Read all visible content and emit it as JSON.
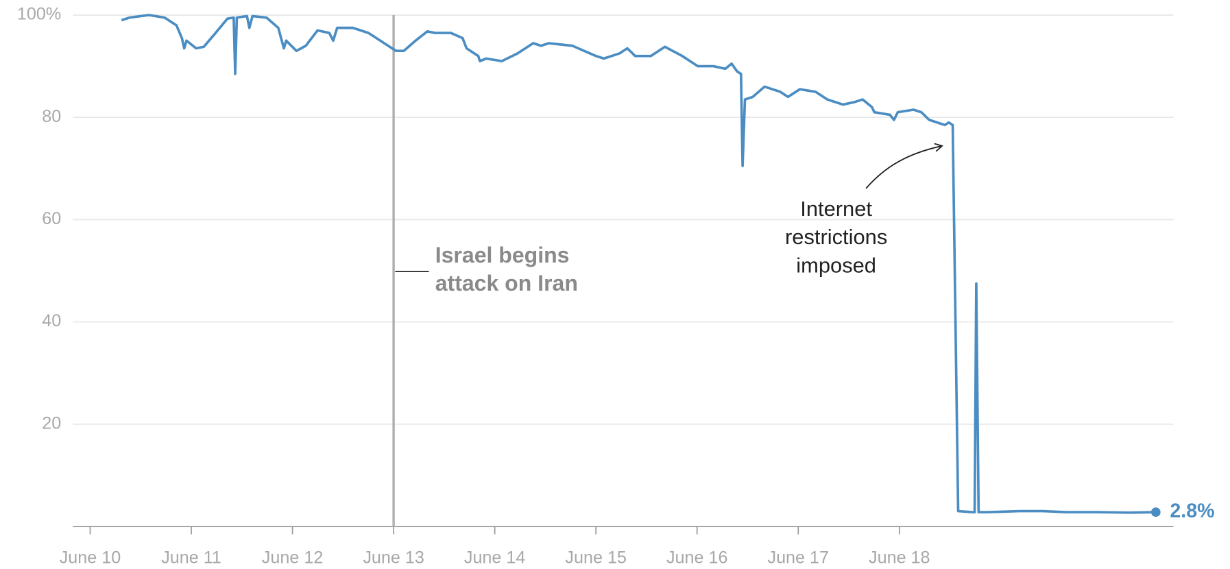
{
  "chart_data": {
    "type": "line",
    "x": [
      10.31,
      10.388,
      10.581,
      10.736,
      10.853,
      10.907,
      10.93,
      10.953,
      11.047,
      11.124,
      11.24,
      11.357,
      11.419,
      11.434,
      11.45,
      11.55,
      11.574,
      11.605,
      11.744,
      11.86,
      11.915,
      11.938,
      12.039,
      12.132,
      12.248,
      12.364,
      12.403,
      12.442,
      12.597,
      12.752,
      12.907,
      13.023,
      13.101,
      13.217,
      13.333,
      13.411,
      13.566,
      13.682,
      13.721,
      13.837,
      13.853,
      13.915,
      14.07,
      14.225,
      14.38,
      14.457,
      14.535,
      14.767,
      15.0,
      15.078,
      15.233,
      15.31,
      15.388,
      15.543,
      15.682,
      15.853,
      16.008,
      16.163,
      16.279,
      16.341,
      16.395,
      16.434,
      16.45,
      16.473,
      16.55,
      16.667,
      16.822,
      16.899,
      17.016,
      17.171,
      17.287,
      17.442,
      17.558,
      17.636,
      17.729,
      17.752,
      17.907,
      17.946,
      17.984,
      18.14,
      18.217,
      18.295,
      18.45,
      18.488,
      18.527,
      18.581,
      18.721,
      18.744,
      18.76,
      18.783,
      18.876,
      19.186,
      19.419,
      19.651,
      19.961,
      20.271,
      20.535
    ],
    "series": [
      {
        "color": "#4b8dc2",
        "values": [
          99,
          99.5,
          100,
          99.5,
          98,
          95.5,
          93.5,
          95,
          93.5,
          93.8,
          96.5,
          99.3,
          99.5,
          88.5,
          99.5,
          99.8,
          97.5,
          99.8,
          99.5,
          97.5,
          93.5,
          95,
          93,
          94,
          97,
          96.5,
          95,
          97.5,
          97.5,
          96.5,
          94.5,
          93,
          93,
          95,
          96.8,
          96.5,
          96.5,
          95.5,
          93.5,
          92,
          91,
          91.5,
          91,
          92.5,
          94.5,
          94,
          94.5,
          94,
          92,
          91.5,
          92.5,
          93.5,
          92,
          92,
          93.8,
          92,
          90,
          90,
          89.5,
          90.5,
          89,
          88.5,
          70.5,
          83.5,
          84,
          86,
          85,
          84,
          85.5,
          85,
          83.5,
          82.5,
          83,
          83.5,
          82,
          81,
          80.5,
          79.5,
          81,
          81.5,
          81,
          79.5,
          78.5,
          79,
          78.5,
          3,
          2.8,
          2.8,
          47.5,
          2.8,
          2.8,
          3,
          3,
          2.8,
          2.8,
          2.7,
          2.8
        ]
      }
    ],
    "end_label": "2.8%",
    "xlim": [
      9.83,
      20.71
    ],
    "xticks": [
      {
        "value": 10,
        "label": "June 10"
      },
      {
        "value": 11,
        "label": "June 11"
      },
      {
        "value": 12,
        "label": "June 12"
      },
      {
        "value": 13,
        "label": "June 13"
      },
      {
        "value": 14,
        "label": "June 14"
      },
      {
        "value": 15,
        "label": "June 15"
      },
      {
        "value": 16,
        "label": "June 16"
      },
      {
        "value": 17,
        "label": "June 17"
      },
      {
        "value": 18,
        "label": "June 18"
      }
    ],
    "ylim": [
      0,
      100
    ],
    "yticks": [
      20,
      40,
      60,
      80,
      {
        "value": 100,
        "label": "100%"
      }
    ],
    "grid": true,
    "annotations": [
      {
        "x": 13,
        "text": [
          "Israel begins",
          "attack on Iran"
        ]
      },
      {
        "text": [
          "Internet",
          "restrictions",
          "imposed"
        ]
      }
    ]
  }
}
